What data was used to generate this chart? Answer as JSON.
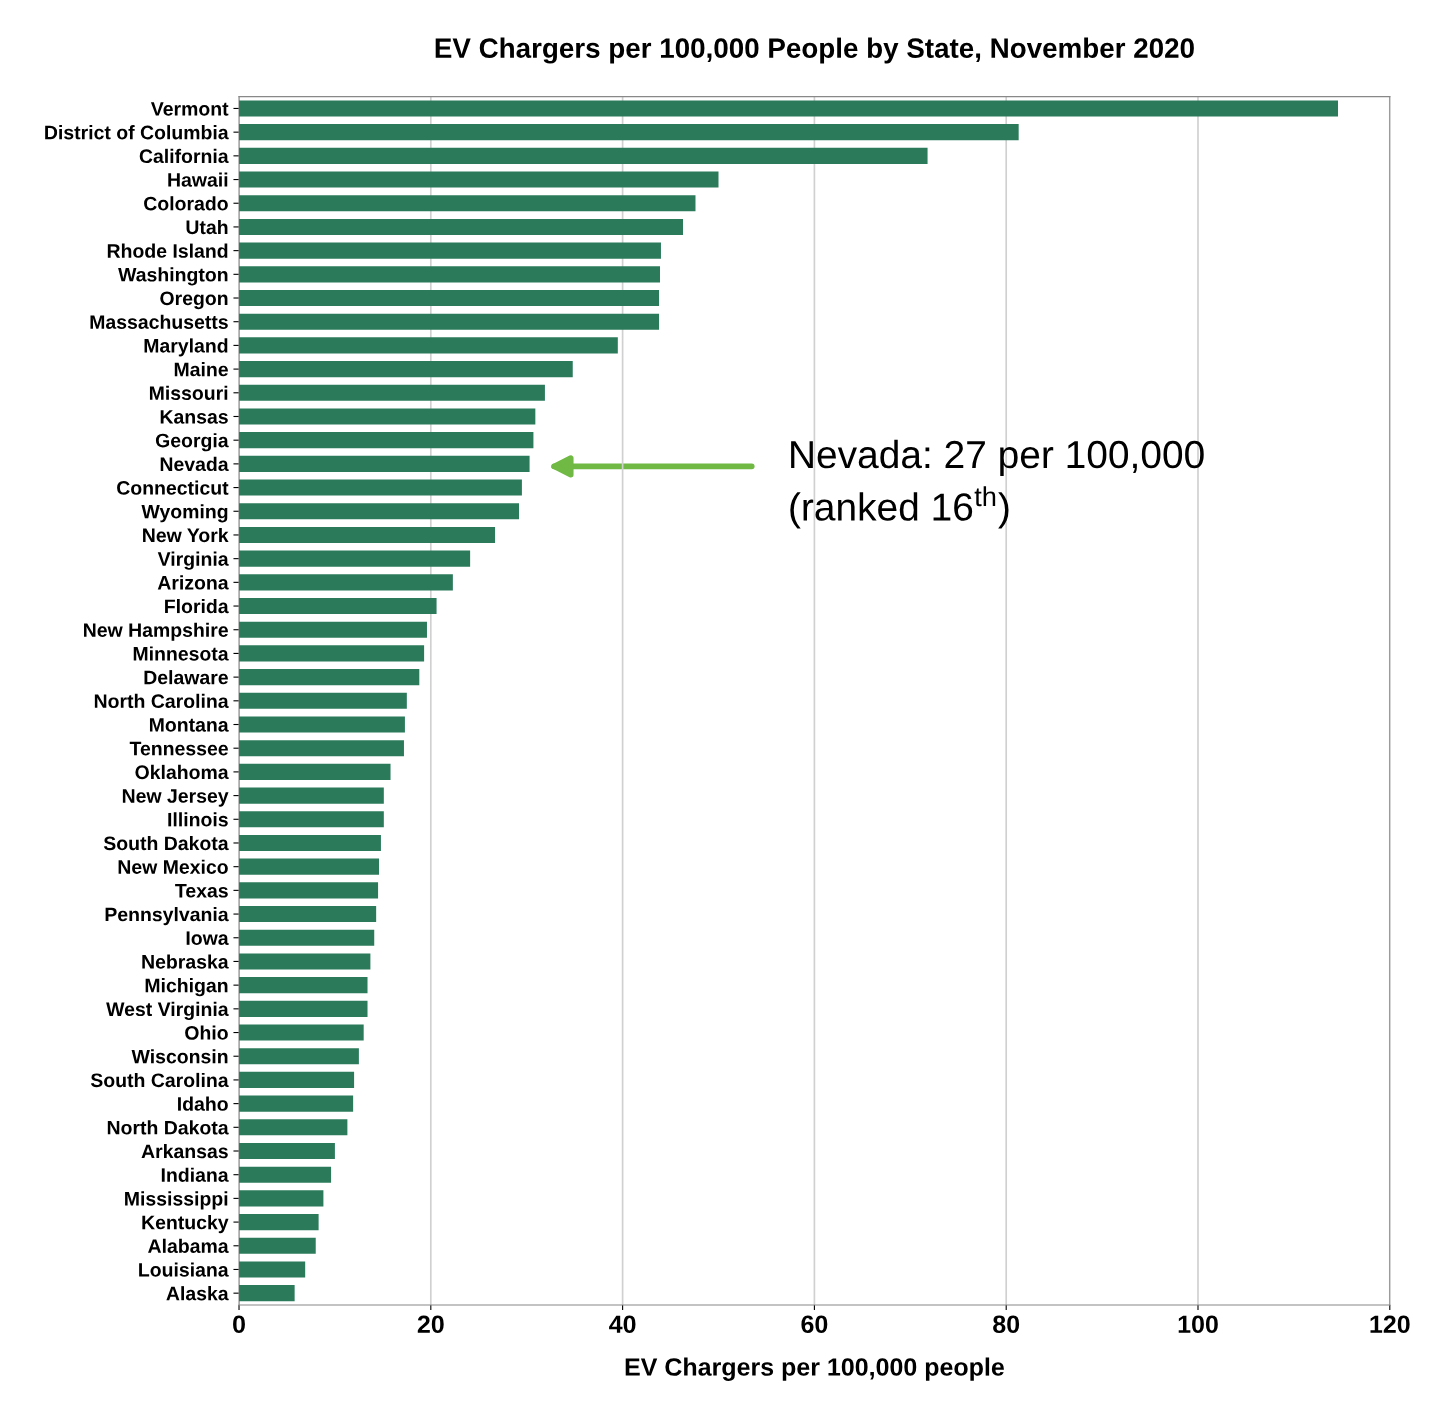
{
  "chart_data": {
    "type": "bar",
    "orientation": "horizontal",
    "title": "EV Chargers per 100,000 People by State, November 2020",
    "xlabel": "EV Chargers per 100,000 people",
    "categories": [
      "Vermont",
      "District of Columbia",
      "California",
      "Hawaii",
      "Colorado",
      "Utah",
      "Rhode Island",
      "Washington",
      "Oregon",
      "Massachusetts",
      "Maryland",
      "Maine",
      "Missouri",
      "Kansas",
      "Georgia",
      "Nevada",
      "Connecticut",
      "Wyoming",
      "New York",
      "Virginia",
      "Arizona",
      "Florida",
      "New Hampshire",
      "Minnesota",
      "Delaware",
      "North Carolina",
      "Montana",
      "Tennessee",
      "Oklahoma",
      "New Jersey",
      "Illinois",
      "South Dakota",
      "New Mexico",
      "Texas",
      "Pennsylvania",
      "Iowa",
      "Nebraska",
      "Michigan",
      "West Virginia",
      "Ohio",
      "Wisconsin",
      "South Carolina",
      "Idaho",
      "North Dakota",
      "Arkansas",
      "Indiana",
      "Mississippi",
      "Kentucky",
      "Alabama",
      "Louisiana",
      "Alaska"
    ],
    "values": [
      114.6,
      81.3,
      71.8,
      50.0,
      47.6,
      46.3,
      44.0,
      43.9,
      43.8,
      43.8,
      39.5,
      34.8,
      31.9,
      30.9,
      30.7,
      30.3,
      29.5,
      29.2,
      26.7,
      24.1,
      22.3,
      20.6,
      19.6,
      19.3,
      18.8,
      17.5,
      17.3,
      17.2,
      15.8,
      15.1,
      15.1,
      14.8,
      14.6,
      14.5,
      14.3,
      14.1,
      13.7,
      13.4,
      13.4,
      13.0,
      12.5,
      12.0,
      11.9,
      11.3,
      10.0,
      9.6,
      8.8,
      8.3,
      8.0,
      6.9,
      5.8
    ],
    "color": "#2b7b5b",
    "xlim": [
      0,
      120
    ],
    "xticks": [
      0,
      20,
      40,
      60,
      80,
      100,
      120
    ],
    "grid": "x",
    "annotations": [
      "Nevada: 27 per 100,000\n(ranked 16$^{th}$)"
    ]
  }
}
